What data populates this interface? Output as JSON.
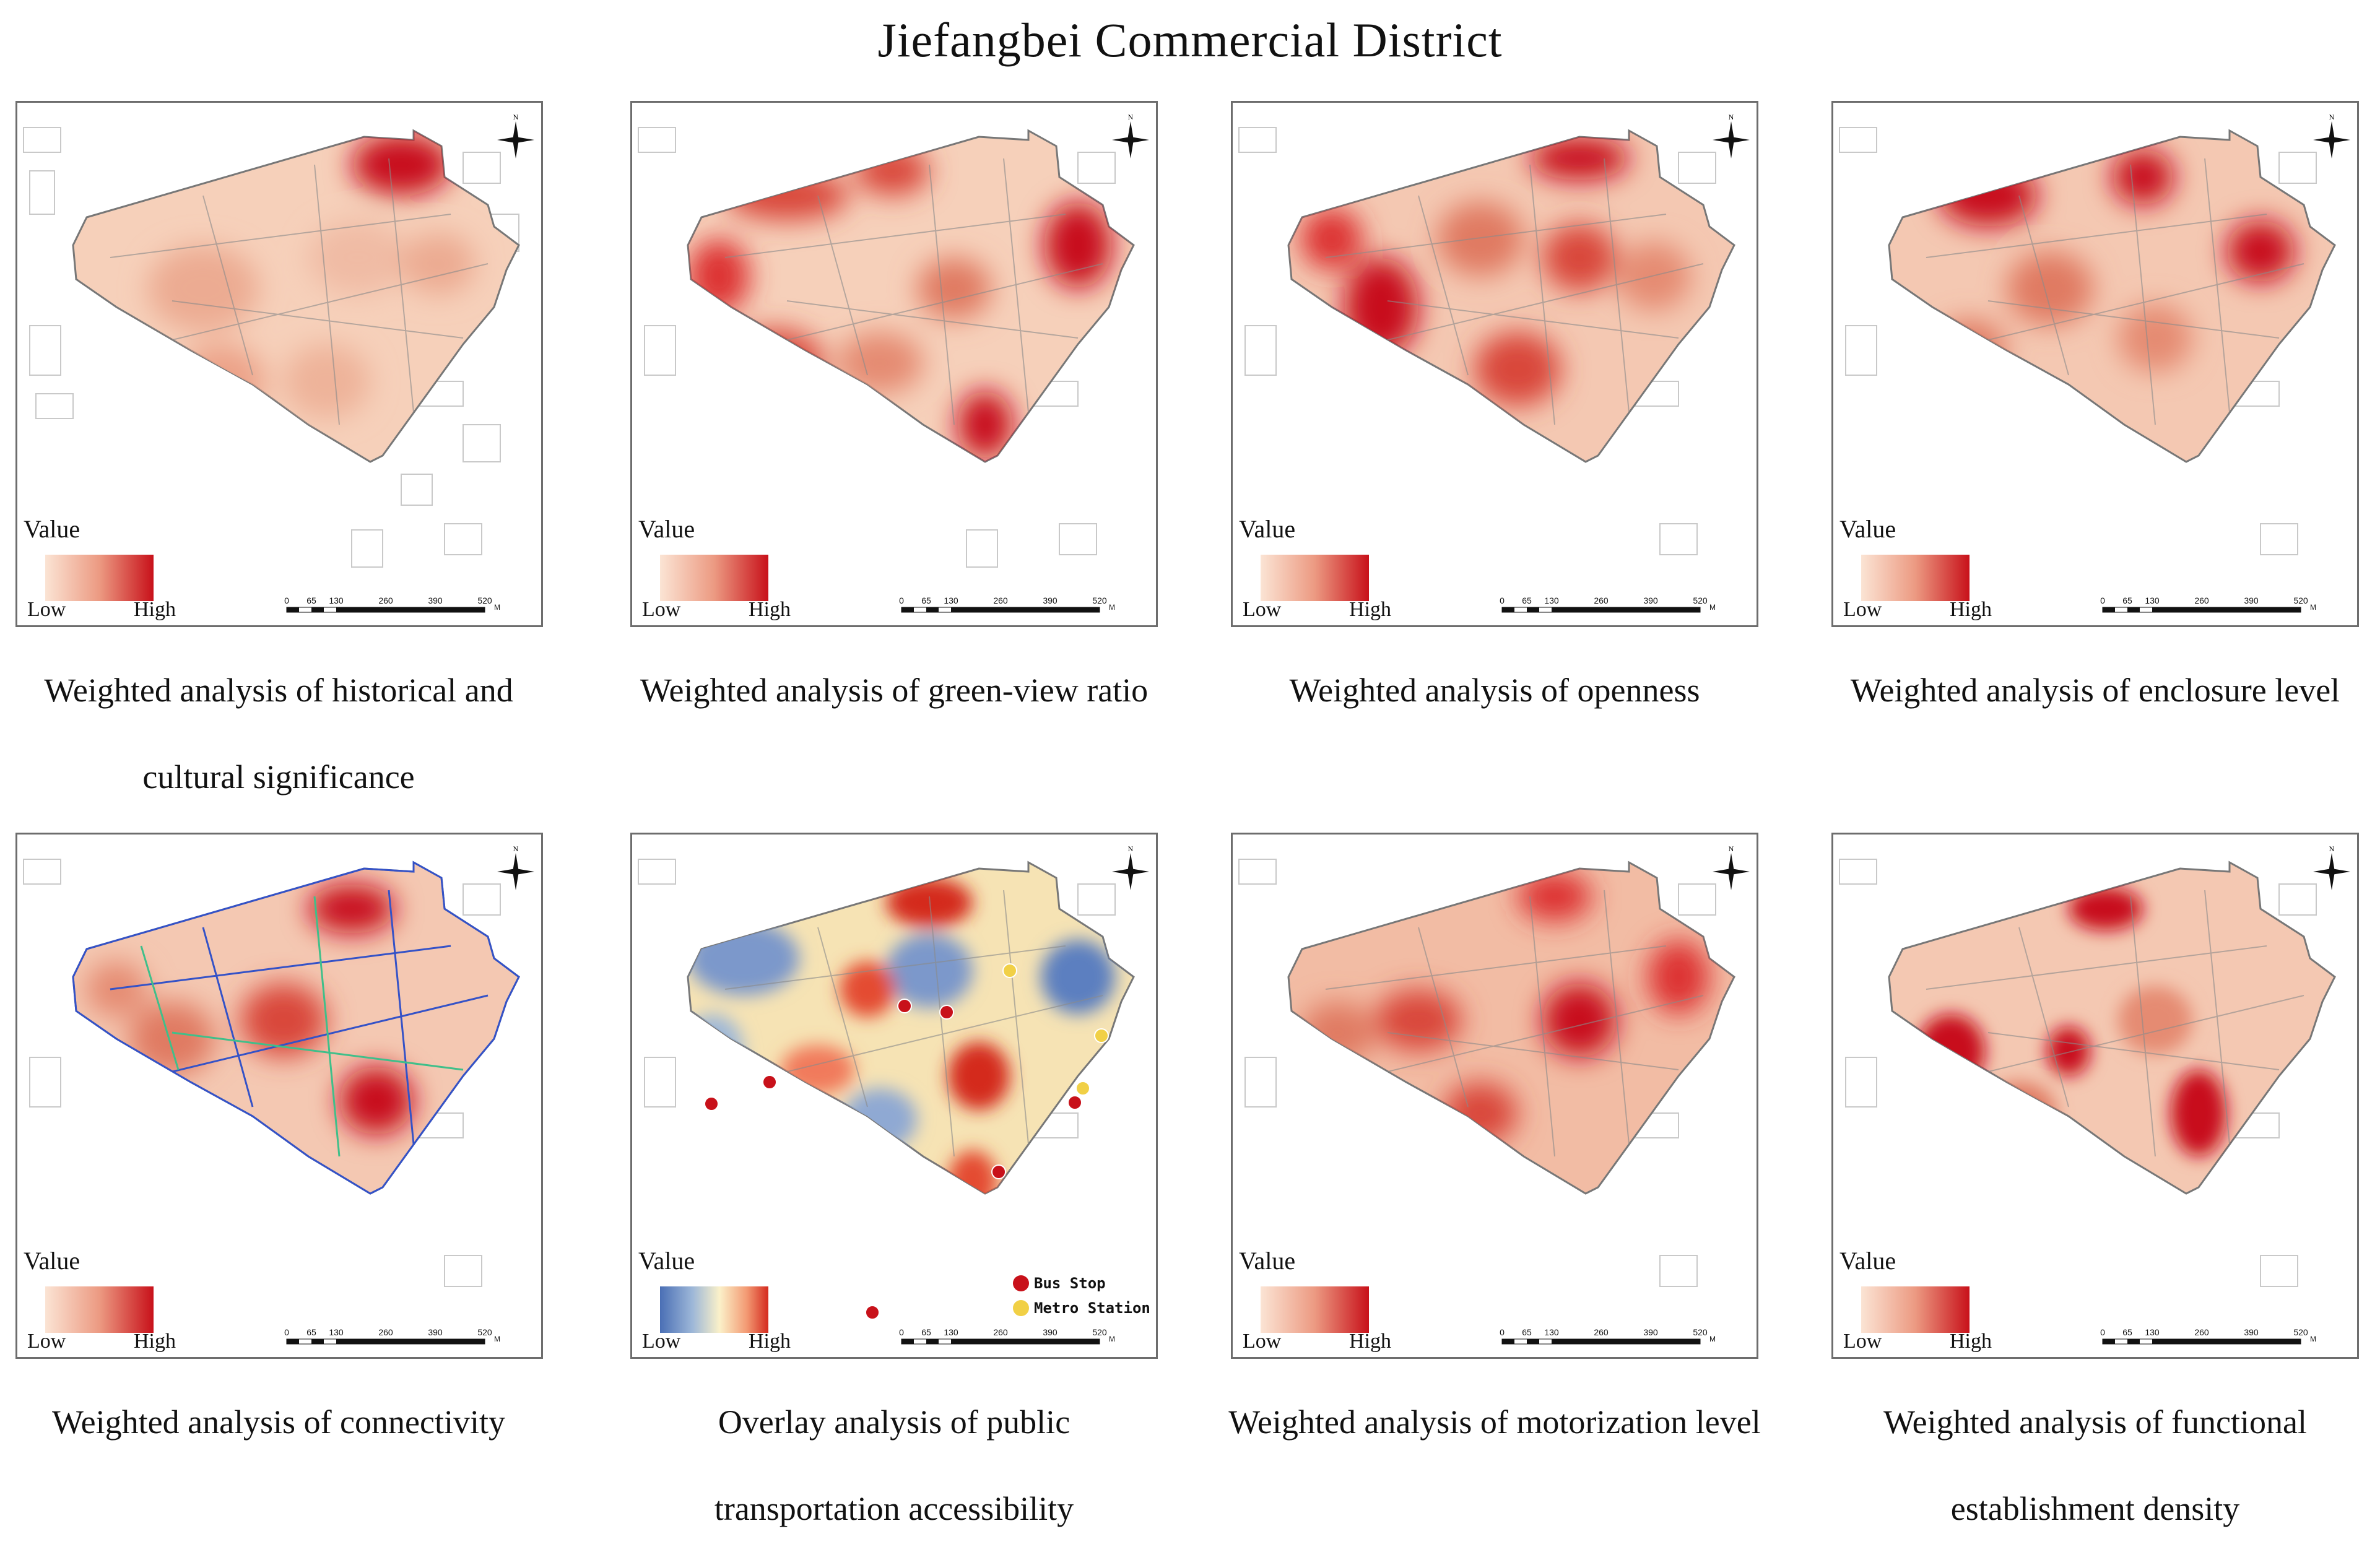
{
  "title": "Jiefangbei Commercial District",
  "legend": {
    "value_label": "Value",
    "low": "Low",
    "high": "High"
  },
  "scale": {
    "ticks": [
      "0",
      "65",
      "130",
      "260",
      "390",
      "520"
    ],
    "unit": "M"
  },
  "north": "N",
  "transit_legend": {
    "bus": "Bus Stop",
    "metro": "Metro Station"
  },
  "panels": [
    {
      "caption": "Weighted analysis of historical and cultural significance"
    },
    {
      "caption": "Weighted analysis of green-view ratio"
    },
    {
      "caption": "Weighted analysis of openness"
    },
    {
      "caption": "Weighted analysis of enclosure level"
    },
    {
      "caption": "Weighted analysis of connectivity"
    },
    {
      "caption": "Overlay analysis of public transportation accessibility"
    },
    {
      "caption": "Weighted analysis of motorization level"
    },
    {
      "caption": "Weighted analysis of functional establishment density"
    }
  ],
  "colors": {
    "low": "#f7dcc8",
    "high": "#c8111a",
    "cool": "#5b7fc0",
    "neutral": "#fbf1c9"
  }
}
